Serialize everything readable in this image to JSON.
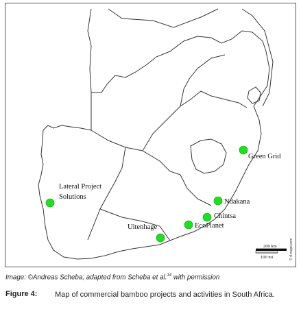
{
  "map": {
    "places": [
      {
        "name": "Green Grid"
      },
      {
        "name": "Ndakana"
      },
      {
        "name": "Chintsa"
      },
      {
        "name": "EcoPlanet"
      },
      {
        "name": "Uitenhage"
      },
      {
        "name": "Lateral Project",
        "name2": "Solutions"
      }
    ],
    "marker_color": "#22dd22",
    "scale": {
      "km": "200 km",
      "mi": "100 mi"
    },
    "watermark": "© d-maps.com"
  },
  "credit": {
    "text": "Image: ©Andreas Scheba; adapted from Scheba et al.",
    "ref": "14",
    "suffix": " with permission"
  },
  "figure": {
    "label": "Figure 4:",
    "caption": "Map of commercial bamboo projects and activities in South Africa."
  }
}
